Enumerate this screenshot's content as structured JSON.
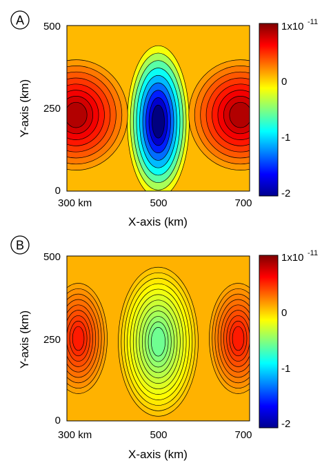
{
  "chart_data": [
    {
      "type": "heatmap",
      "panel_label": "A",
      "xlabel": "X-axis (km)",
      "ylabel": "Y-axis (km)",
      "xlim": [
        300,
        700
      ],
      "ylim": [
        0,
        500
      ],
      "x_ticks": [
        300,
        500,
        700
      ],
      "x_tick_labels": [
        "300 km",
        "500",
        "700"
      ],
      "y_ticks": [
        0,
        250,
        500
      ],
      "y_tick_labels": [
        "0",
        "250",
        "500"
      ],
      "colorbar": {
        "range": [
          -2,
          1
        ],
        "ticks": [
          1,
          0,
          -1,
          -2
        ],
        "tick_labels": [
          "1x10",
          "0",
          "-1",
          "-2"
        ],
        "exponent_label": "-11",
        "colormap": "jet"
      },
      "field": {
        "background": 0.08,
        "features": [
          {
            "kind": "negative-low",
            "x": 500,
            "y": 210,
            "peak": -2.0
          },
          {
            "kind": "positive-high",
            "x": 320,
            "y": 230,
            "peak": 0.85
          },
          {
            "kind": "positive-high",
            "x": 680,
            "y": 230,
            "peak": 0.85
          }
        ]
      }
    },
    {
      "type": "heatmap",
      "panel_label": "B",
      "xlabel": "X-axis (km)",
      "ylabel": "Y-axis (km)",
      "xlim": [
        300,
        700
      ],
      "ylim": [
        0,
        500
      ],
      "x_ticks": [
        300,
        500,
        700
      ],
      "x_tick_labels": [
        "300 km",
        "500",
        "700"
      ],
      "y_ticks": [
        0,
        250,
        500
      ],
      "y_tick_labels": [
        "0",
        "250",
        "500"
      ],
      "colorbar": {
        "range": [
          -2,
          1
        ],
        "ticks": [
          1,
          0,
          -1,
          -2
        ],
        "tick_labels": [
          "1x10",
          "0",
          "-1",
          "-2"
        ],
        "exponent_label": "-11",
        "colormap": "jet"
      },
      "field": {
        "background": 0.1,
        "features": [
          {
            "kind": "negative-low",
            "x": 500,
            "y": 240,
            "peak": -0.55
          },
          {
            "kind": "positive-high",
            "x": 325,
            "y": 250,
            "peak": 0.55
          },
          {
            "kind": "positive-high",
            "x": 675,
            "y": 250,
            "peak": 0.55
          }
        ]
      }
    }
  ]
}
